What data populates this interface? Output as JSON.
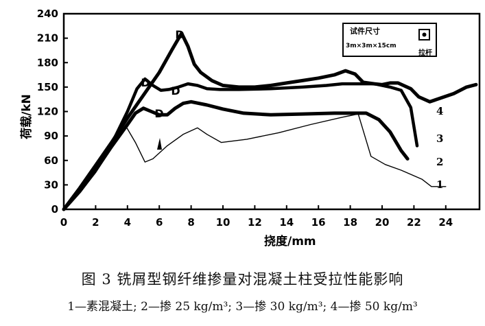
{
  "chart_data": {
    "type": "line",
    "xlabel": "挠度/mm",
    "ylabel": "荷载/kN",
    "xlim": [
      0,
      26
    ],
    "ylim": [
      0,
      240
    ],
    "xticks": [
      0,
      2,
      4,
      6,
      8,
      10,
      12,
      14,
      16,
      18,
      20,
      22,
      24
    ],
    "yticks": [
      0,
      30,
      60,
      90,
      120,
      150,
      180,
      210,
      240
    ],
    "legend": {
      "line1": "试件尺寸",
      "line2": "3m×3m×15cm",
      "marker_label": "拉杆"
    },
    "series": [
      {
        "name": "1",
        "points": [
          [
            0,
            0
          ],
          [
            1,
            20
          ],
          [
            2,
            45
          ],
          [
            3,
            75
          ],
          [
            3.9,
            102
          ],
          [
            4.5,
            82
          ],
          [
            5.1,
            58
          ],
          [
            5.6,
            62
          ],
          [
            6.5,
            78
          ],
          [
            7.5,
            92
          ],
          [
            8.4,
            100
          ],
          [
            9,
            92
          ],
          [
            9.9,
            82
          ],
          [
            11.5,
            86
          ],
          [
            13.5,
            94
          ],
          [
            15.5,
            104
          ],
          [
            17.5,
            113
          ],
          [
            18.5,
            117
          ],
          [
            19.3,
            65
          ],
          [
            20.2,
            55
          ],
          [
            21.2,
            48
          ],
          [
            22.5,
            37
          ],
          [
            23.1,
            28
          ],
          [
            24,
            28
          ]
        ]
      },
      {
        "name": "2",
        "points": [
          [
            0,
            0
          ],
          [
            1,
            22
          ],
          [
            2,
            48
          ],
          [
            3,
            77
          ],
          [
            4,
            104
          ],
          [
            4.5,
            118
          ],
          [
            5,
            124
          ],
          [
            5.5,
            120
          ],
          [
            6,
            116
          ],
          [
            6.5,
            116
          ],
          [
            7,
            124
          ],
          [
            7.5,
            130
          ],
          [
            8,
            132
          ],
          [
            9,
            128
          ],
          [
            10,
            123
          ],
          [
            11.3,
            118
          ],
          [
            13,
            116
          ],
          [
            15,
            117
          ],
          [
            17,
            118
          ],
          [
            19,
            118
          ],
          [
            19.8,
            110
          ],
          [
            20.5,
            95
          ],
          [
            21.2,
            72
          ],
          [
            21.6,
            62
          ]
        ]
      },
      {
        "name": "3",
        "points": [
          [
            0,
            0
          ],
          [
            1,
            24
          ],
          [
            2,
            50
          ],
          [
            3,
            80
          ],
          [
            4,
            120
          ],
          [
            4.6,
            148
          ],
          [
            5.1,
            160
          ],
          [
            5.6,
            152
          ],
          [
            6.1,
            146
          ],
          [
            6.6,
            147
          ],
          [
            7.2,
            150
          ],
          [
            7.8,
            154
          ],
          [
            8.4,
            152
          ],
          [
            9,
            148
          ],
          [
            9.8,
            147
          ],
          [
            11,
            147
          ],
          [
            13,
            148
          ],
          [
            15,
            150
          ],
          [
            16.5,
            152
          ],
          [
            17.5,
            154
          ],
          [
            19.5,
            154
          ],
          [
            20.5,
            150
          ],
          [
            21.2,
            146
          ],
          [
            21.8,
            125
          ],
          [
            22.2,
            78
          ]
        ]
      },
      {
        "name": "4",
        "points": [
          [
            0,
            0
          ],
          [
            1,
            26
          ],
          [
            2,
            54
          ],
          [
            3,
            82
          ],
          [
            4,
            112
          ],
          [
            5,
            140
          ],
          [
            6,
            168
          ],
          [
            6.8,
            196
          ],
          [
            7.4,
            216
          ],
          [
            7.8,
            200
          ],
          [
            8.2,
            178
          ],
          [
            8.6,
            168
          ],
          [
            9.3,
            158
          ],
          [
            10,
            152
          ],
          [
            11,
            150
          ],
          [
            12,
            150
          ],
          [
            13,
            152
          ],
          [
            14,
            155
          ],
          [
            15,
            158
          ],
          [
            16,
            161
          ],
          [
            17,
            165
          ],
          [
            17.7,
            170
          ],
          [
            18.3,
            166
          ],
          [
            18.8,
            156
          ],
          [
            19.5,
            154
          ],
          [
            20,
            153
          ],
          [
            20.5,
            155
          ],
          [
            21,
            155
          ],
          [
            21.8,
            148
          ],
          [
            22.3,
            138
          ],
          [
            23,
            132
          ],
          [
            23.6,
            136
          ],
          [
            24.5,
            142
          ],
          [
            25.3,
            150
          ],
          [
            25.9,
            153
          ]
        ]
      }
    ],
    "series_labels": [
      "1",
      "2",
      "3",
      "4"
    ],
    "annotation_letters": [
      "D",
      "D",
      "D",
      "D"
    ]
  },
  "caption": "图 3    铣屑型钢纤维掺量对混凝土柱受拉性能影响",
  "note": "1—素混凝土; 2—掺 25 kg/m³; 3—掺 30 kg/m³; 4—掺 50 kg/m³"
}
